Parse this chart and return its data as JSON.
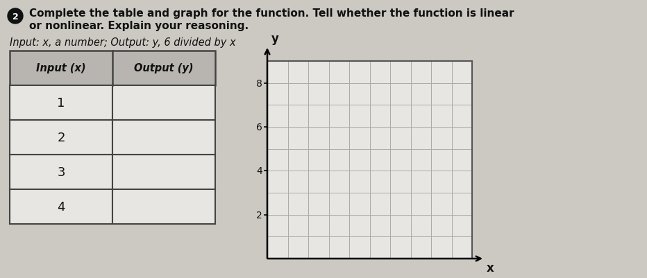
{
  "title_line1": "Complete the table and graph for the function. Tell whether the function is linear",
  "title_line2": "or nonlinear. Explain your reasoning.",
  "subtitle": "Input: x, a number; Output: y, 6 divided by x",
  "problem_number": "2",
  "table_headers": [
    "Input (x)",
    "Output (y)"
  ],
  "table_rows": [
    "1",
    "2",
    "3",
    "4"
  ],
  "graph_ylabel": "y",
  "graph_xlabel": "x",
  "graph_yticks": [
    2,
    4,
    6,
    8
  ],
  "bg_color": "#ccc9c3",
  "table_header_bg": "#b8b5b0",
  "table_bg": "#e8e6e2",
  "table_border_color": "#444444",
  "grid_color": "#aaaaaa",
  "graph_bg": "#e8e6e2",
  "text_color": "#111111",
  "grid_cols": 10,
  "grid_rows": 9,
  "fig_width": 9.32,
  "fig_height": 4.02
}
